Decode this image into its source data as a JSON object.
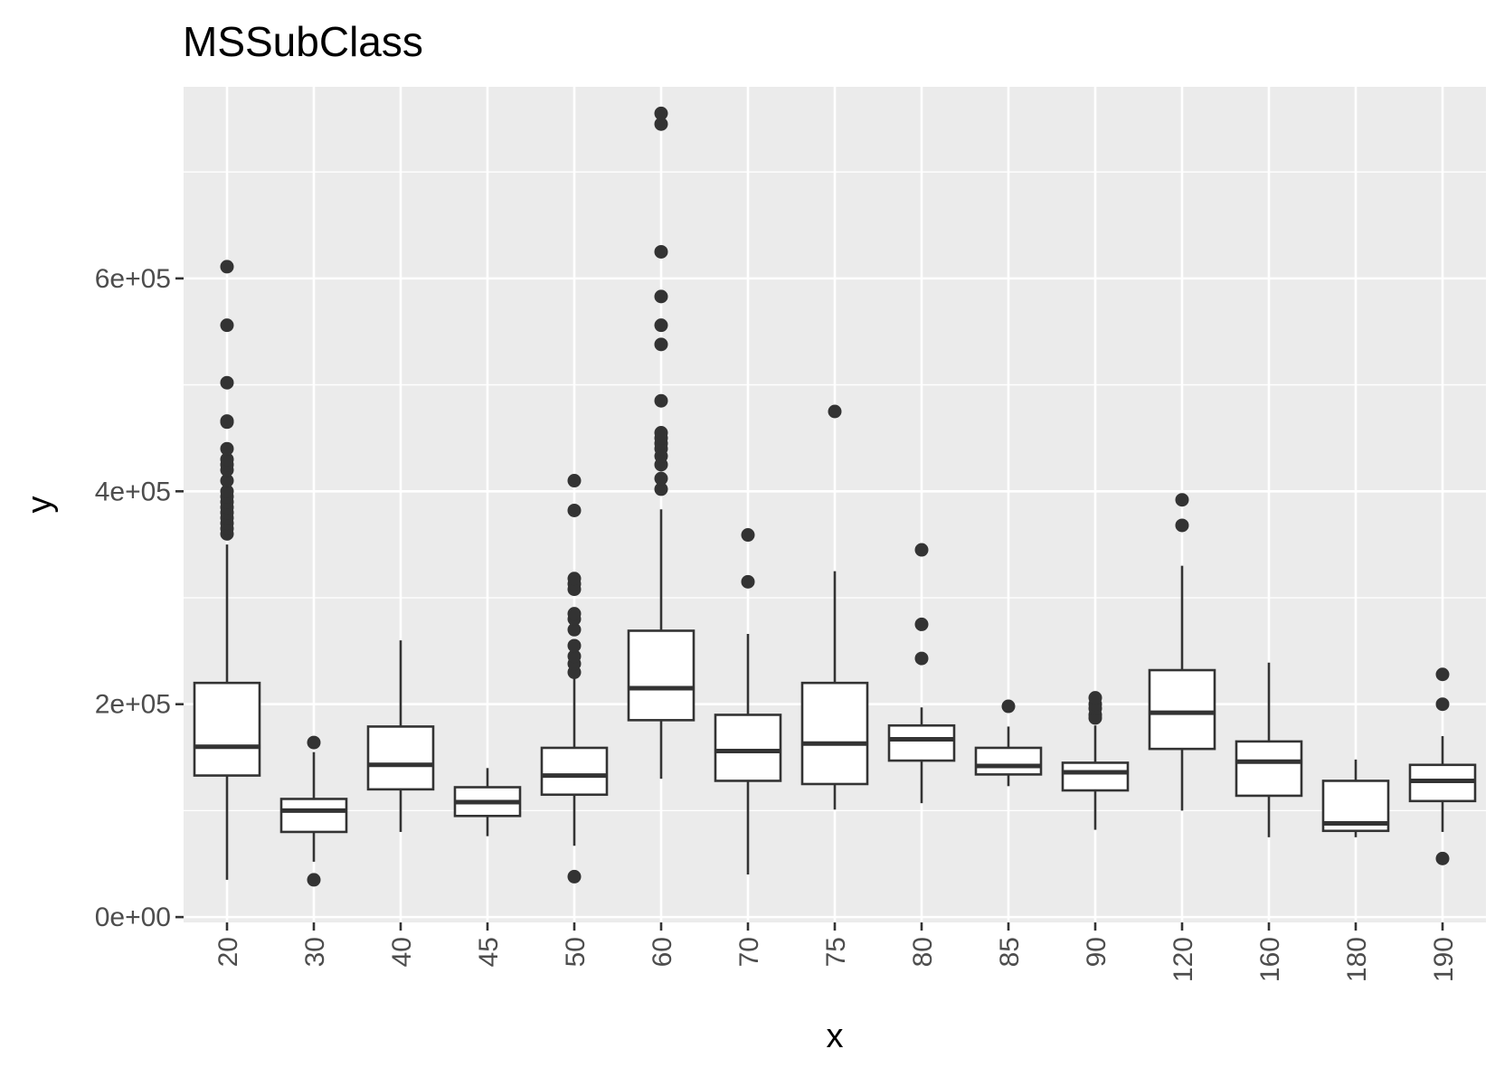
{
  "chart_data": {
    "type": "boxplot",
    "title": "MSSubClass",
    "xlabel": "x",
    "ylabel": "y",
    "ylim": [
      -5000,
      780000
    ],
    "yticks": [
      0,
      200000,
      400000,
      600000
    ],
    "ytick_labels": [
      "0e+00",
      "2e+05",
      "4e+05",
      "6e+05"
    ],
    "grid": true,
    "colors": {
      "panel": "#ebebeb",
      "grid": "#ffffff",
      "box_line": "#333333",
      "box_fill": "#ffffff",
      "outlier": "#333333"
    },
    "categories": [
      "20",
      "30",
      "40",
      "45",
      "50",
      "60",
      "70",
      "75",
      "80",
      "85",
      "90",
      "120",
      "160",
      "180",
      "190"
    ],
    "boxes": [
      {
        "category": "20",
        "q1": 133000,
        "median": 160000,
        "q3": 220000,
        "whisker_low": 35000,
        "whisker_high": 350000,
        "outliers": [
          360000,
          365000,
          370000,
          375000,
          380000,
          385000,
          390000,
          395000,
          400000,
          410000,
          420000,
          425000,
          430000,
          440000,
          465000,
          466000,
          502000,
          556000,
          611000
        ]
      },
      {
        "category": "30",
        "q1": 80000,
        "median": 100000,
        "q3": 111000,
        "whisker_low": 52000,
        "whisker_high": 155000,
        "outliers": [
          35000,
          164000
        ]
      },
      {
        "category": "40",
        "q1": 120000,
        "median": 143000,
        "q3": 179000,
        "whisker_low": 80000,
        "whisker_high": 260000,
        "outliers": []
      },
      {
        "category": "45",
        "q1": 95000,
        "median": 108000,
        "q3": 122000,
        "whisker_low": 76000,
        "whisker_high": 140000,
        "outliers": []
      },
      {
        "category": "50",
        "q1": 115000,
        "median": 133000,
        "q3": 159000,
        "whisker_low": 67000,
        "whisker_high": 225000,
        "outliers": [
          38000,
          230000,
          238000,
          245000,
          255000,
          270000,
          280000,
          285000,
          308000,
          313000,
          318000,
          382000,
          410000
        ]
      },
      {
        "category": "60",
        "q1": 185000,
        "median": 215000,
        "q3": 269000,
        "whisker_low": 130000,
        "whisker_high": 383000,
        "outliers": [
          402000,
          412000,
          425000,
          433000,
          440000,
          445000,
          450000,
          455000,
          485000,
          538000,
          556000,
          583000,
          625000,
          745000,
          755000
        ]
      },
      {
        "category": "70",
        "q1": 128000,
        "median": 156000,
        "q3": 190000,
        "whisker_low": 40000,
        "whisker_high": 266000,
        "outliers": [
          315000,
          359000
        ]
      },
      {
        "category": "75",
        "q1": 125000,
        "median": 163000,
        "q3": 220000,
        "whisker_low": 101000,
        "whisker_high": 325000,
        "outliers": [
          475000
        ]
      },
      {
        "category": "80",
        "q1": 147000,
        "median": 167000,
        "q3": 180000,
        "whisker_low": 107000,
        "whisker_high": 197000,
        "outliers": [
          243000,
          275000,
          345000
        ]
      },
      {
        "category": "85",
        "q1": 134000,
        "median": 142000,
        "q3": 159000,
        "whisker_low": 123000,
        "whisker_high": 179000,
        "outliers": [
          198000
        ]
      },
      {
        "category": "90",
        "q1": 119000,
        "median": 136000,
        "q3": 145000,
        "whisker_low": 82000,
        "whisker_high": 180000,
        "outliers": [
          187000,
          190000,
          196000,
          200000,
          206000
        ]
      },
      {
        "category": "120",
        "q1": 158000,
        "median": 192000,
        "q3": 232000,
        "whisker_low": 100000,
        "whisker_high": 330000,
        "outliers": [
          368000,
          392000
        ]
      },
      {
        "category": "160",
        "q1": 114000,
        "median": 146000,
        "q3": 165000,
        "whisker_low": 75000,
        "whisker_high": 239000,
        "outliers": []
      },
      {
        "category": "180",
        "q1": 81000,
        "median": 88000,
        "q3": 128000,
        "whisker_low": 75000,
        "whisker_high": 148000,
        "outliers": []
      },
      {
        "category": "190",
        "q1": 109000,
        "median": 128000,
        "q3": 143000,
        "whisker_low": 80000,
        "whisker_high": 170000,
        "outliers": [
          55000,
          200000,
          228000
        ]
      }
    ]
  }
}
